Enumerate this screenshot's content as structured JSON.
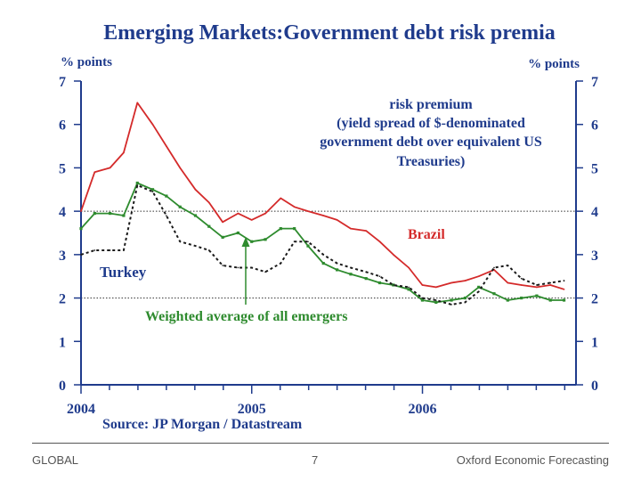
{
  "footer": {
    "left": "GLOBAL",
    "page_number": "7",
    "right": "Oxford Economic Forecasting"
  },
  "chart_data": {
    "type": "line",
    "title": "Emerging Markets:Government debt risk premia",
    "left_unit": "% points",
    "right_unit": "% points",
    "ylim": [
      0,
      7
    ],
    "y_ticks": [
      "0",
      "1",
      "2",
      "3",
      "4",
      "5",
      "6",
      "7"
    ],
    "xlim": [
      2004.0,
      2006.9
    ],
    "x_tick_labels": [
      "2004",
      "2005",
      "2006"
    ],
    "x_tick_values": [
      2004,
      2005,
      2006
    ],
    "x_minor_step": 0.1667,
    "reference_lines": [
      2,
      4
    ],
    "annotation_lines": [
      "risk premium",
      "(yield spread of $-denominated",
      "government debt over equivalent US",
      "Treasuries)"
    ],
    "source": "Source: JP Morgan / Datastream",
    "colors": {
      "axis": "#1f3b8c",
      "brazil": "#d42a2a",
      "weighted": "#2e8b2e",
      "turkey": "#1a1a1a",
      "arrow": "#2e8b2e"
    },
    "series": [
      {
        "name": "Brazil",
        "style": "solid",
        "x": [
          2004.0,
          2004.08,
          2004.17,
          2004.25,
          2004.33,
          2004.42,
          2004.5,
          2004.58,
          2004.67,
          2004.75,
          2004.83,
          2004.92,
          2005.0,
          2005.08,
          2005.17,
          2005.25,
          2005.33,
          2005.42,
          2005.5,
          2005.58,
          2005.67,
          2005.75,
          2005.83,
          2005.92,
          2006.0,
          2006.08,
          2006.17,
          2006.25,
          2006.33,
          2006.42,
          2006.5,
          2006.58,
          2006.67,
          2006.75,
          2006.83
        ],
        "values": [
          4.0,
          4.9,
          5.0,
          5.35,
          6.5,
          6.0,
          5.5,
          5.0,
          4.5,
          4.2,
          3.75,
          3.95,
          3.8,
          3.95,
          4.3,
          4.1,
          4.0,
          3.9,
          3.8,
          3.6,
          3.55,
          3.3,
          3.0,
          2.7,
          2.3,
          2.25,
          2.35,
          2.4,
          2.5,
          2.65,
          2.35,
          2.3,
          2.25,
          2.3,
          2.2
        ]
      },
      {
        "name": "Weighted average of all emergers",
        "style": "solid-markers",
        "x": [
          2004.0,
          2004.08,
          2004.17,
          2004.25,
          2004.33,
          2004.42,
          2004.5,
          2004.58,
          2004.67,
          2004.75,
          2004.83,
          2004.92,
          2005.0,
          2005.08,
          2005.17,
          2005.25,
          2005.33,
          2005.42,
          2005.5,
          2005.58,
          2005.67,
          2005.75,
          2005.83,
          2005.92,
          2006.0,
          2006.08,
          2006.17,
          2006.25,
          2006.33,
          2006.42,
          2006.5,
          2006.58,
          2006.67,
          2006.75,
          2006.83
        ],
        "values": [
          3.6,
          3.95,
          3.95,
          3.9,
          4.65,
          4.5,
          4.35,
          4.1,
          3.9,
          3.65,
          3.4,
          3.5,
          3.3,
          3.35,
          3.6,
          3.6,
          3.2,
          2.8,
          2.65,
          2.55,
          2.45,
          2.35,
          2.3,
          2.2,
          1.95,
          1.9,
          1.95,
          2.0,
          2.25,
          2.1,
          1.95,
          2.0,
          2.05,
          1.95,
          1.95
        ]
      },
      {
        "name": "Turkey",
        "style": "dotted",
        "x": [
          2004.0,
          2004.08,
          2004.17,
          2004.25,
          2004.33,
          2004.42,
          2004.5,
          2004.58,
          2004.67,
          2004.75,
          2004.83,
          2004.92,
          2005.0,
          2005.08,
          2005.17,
          2005.25,
          2005.33,
          2005.42,
          2005.5,
          2005.58,
          2005.67,
          2005.75,
          2005.83,
          2005.92,
          2006.0,
          2006.08,
          2006.17,
          2006.25,
          2006.33,
          2006.42,
          2006.5,
          2006.58,
          2006.67,
          2006.75,
          2006.83
        ],
        "values": [
          3.0,
          3.1,
          3.1,
          3.1,
          4.6,
          4.45,
          3.9,
          3.3,
          3.2,
          3.1,
          2.75,
          2.7,
          2.7,
          2.6,
          2.8,
          3.3,
          3.3,
          3.0,
          2.8,
          2.7,
          2.6,
          2.5,
          2.3,
          2.25,
          2.0,
          1.95,
          1.85,
          1.9,
          2.15,
          2.7,
          2.75,
          2.45,
          2.3,
          2.35,
          2.4
        ]
      }
    ],
    "series_labels": {
      "brazil": "Brazil",
      "turkey": "Turkey",
      "weighted": "Weighted average of all emergers"
    }
  }
}
